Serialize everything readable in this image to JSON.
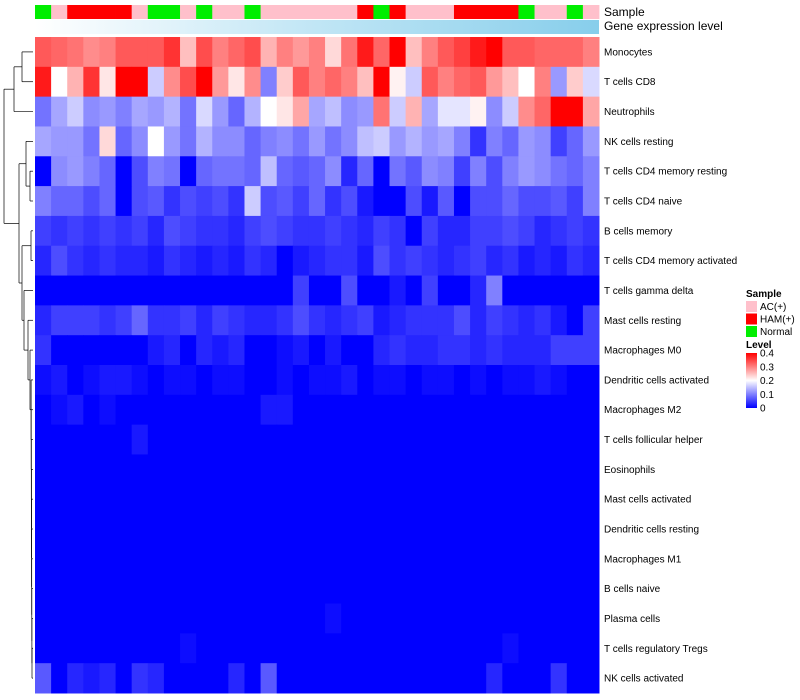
{
  "chart_data": {
    "type": "heatmap",
    "title": "",
    "annotations": [
      {
        "name": "Sample"
      },
      {
        "name": "Gene expression level"
      }
    ],
    "sample_groups": [
      "N",
      "A",
      "H",
      "H",
      "H",
      "H",
      "A",
      "N",
      "N",
      "A",
      "N",
      "A",
      "A",
      "N",
      "A",
      "A",
      "A",
      "A",
      "A",
      "A",
      "H",
      "N",
      "H",
      "A",
      "A",
      "A",
      "H",
      "H",
      "H",
      "H",
      "N",
      "A",
      "A",
      "N",
      "A"
    ],
    "rows": [
      "Monocytes",
      "T cells CD8",
      "Neutrophils",
      "NK cells resting",
      "T cells CD4 memory resting",
      "T cells CD4 naive",
      "B cells memory",
      "T cells CD4 memory activated",
      "T cells gamma delta",
      "Mast cells resting",
      "Macrophages M0",
      "Dendritic cells activated",
      "Macrophages M2",
      "T cells follicular helper",
      "Eosinophils",
      "Mast cells activated",
      "Dendritic cells resting",
      "Macrophages M1",
      "B cells naive",
      "Plasma cells",
      "T cells regulatory  Tregs",
      "NK cells activated"
    ],
    "values": [
      [
        0.33,
        0.32,
        0.31,
        0.29,
        0.3,
        0.33,
        0.33,
        0.33,
        0.36,
        0.25,
        0.34,
        0.3,
        0.32,
        0.34,
        0.26,
        0.3,
        0.28,
        0.3,
        0.23,
        0.31,
        0.38,
        0.32,
        0.42,
        0.25,
        0.3,
        0.33,
        0.35,
        0.38,
        0.4,
        0.33,
        0.33,
        0.32,
        0.32,
        0.32,
        0.3
      ],
      [
        0.38,
        0.2,
        0.26,
        0.36,
        0.22,
        0.4,
        0.4,
        0.16,
        0.29,
        0.34,
        0.4,
        0.28,
        0.22,
        0.29,
        0.1,
        0.24,
        0.33,
        0.3,
        0.32,
        0.3,
        0.25,
        0.42,
        0.21,
        0.16,
        0.33,
        0.3,
        0.32,
        0.33,
        0.28,
        0.25,
        0.2,
        0.3,
        0.12,
        0.24,
        0.17
      ],
      [
        0.09,
        0.13,
        0.16,
        0.11,
        0.12,
        0.1,
        0.13,
        0.12,
        0.14,
        0.09,
        0.17,
        0.12,
        0.08,
        0.14,
        0.2,
        0.22,
        0.27,
        0.13,
        0.15,
        0.11,
        0.12,
        0.31,
        0.16,
        0.26,
        0.13,
        0.18,
        0.18,
        0.21,
        0.11,
        0.16,
        0.29,
        0.32,
        0.4,
        0.44,
        0.27
      ],
      [
        0.13,
        0.12,
        0.12,
        0.09,
        0.23,
        0.08,
        0.11,
        0.2,
        0.12,
        0.09,
        0.14,
        0.11,
        0.11,
        0.08,
        0.1,
        0.11,
        0.09,
        0.12,
        0.09,
        0.11,
        0.15,
        0.16,
        0.12,
        0.14,
        0.12,
        0.13,
        0.1,
        0.04,
        0.1,
        0.08,
        0.12,
        0.11,
        0.05,
        0.08,
        0.12
      ],
      [
        0.0,
        0.11,
        0.12,
        0.1,
        0.08,
        0.0,
        0.06,
        0.1,
        0.09,
        0.0,
        0.08,
        0.09,
        0.09,
        0.08,
        0.15,
        0.08,
        0.07,
        0.08,
        0.11,
        0.03,
        0.08,
        0.0,
        0.09,
        0.07,
        0.11,
        0.1,
        0.05,
        0.1,
        0.06,
        0.1,
        0.12,
        0.11,
        0.09,
        0.08,
        0.1
      ],
      [
        0.1,
        0.08,
        0.08,
        0.06,
        0.08,
        0.0,
        0.06,
        0.07,
        0.04,
        0.06,
        0.05,
        0.06,
        0.04,
        0.16,
        0.06,
        0.07,
        0.05,
        0.08,
        0.04,
        0.06,
        0.02,
        0.0,
        0.0,
        0.06,
        0.02,
        0.07,
        0.0,
        0.06,
        0.06,
        0.08,
        0.06,
        0.06,
        0.07,
        0.05,
        0.1
      ],
      [
        0.05,
        0.04,
        0.05,
        0.04,
        0.05,
        0.04,
        0.05,
        0.03,
        0.06,
        0.05,
        0.04,
        0.04,
        0.03,
        0.05,
        0.06,
        0.05,
        0.04,
        0.04,
        0.05,
        0.04,
        0.03,
        0.05,
        0.04,
        0.0,
        0.05,
        0.03,
        0.03,
        0.05,
        0.05,
        0.06,
        0.05,
        0.03,
        0.04,
        0.05,
        0.04
      ],
      [
        0.03,
        0.06,
        0.04,
        0.03,
        0.04,
        0.03,
        0.03,
        0.02,
        0.04,
        0.03,
        0.02,
        0.03,
        0.02,
        0.04,
        0.03,
        0.0,
        0.02,
        0.03,
        0.04,
        0.04,
        0.02,
        0.06,
        0.04,
        0.05,
        0.04,
        0.03,
        0.04,
        0.05,
        0.03,
        0.04,
        0.02,
        0.03,
        0.02,
        0.04,
        0.03
      ],
      [
        0.0,
        0.0,
        0.0,
        0.0,
        0.0,
        0.0,
        0.0,
        0.0,
        0.0,
        0.0,
        0.0,
        0.0,
        0.0,
        0.0,
        0.0,
        0.0,
        0.05,
        0.0,
        0.0,
        0.06,
        0.0,
        0.0,
        0.02,
        0.0,
        0.05,
        0.0,
        0.0,
        0.03,
        0.1,
        0.0,
        0.0,
        0.0,
        0.0,
        0.0,
        0.0
      ],
      [
        0.03,
        0.05,
        0.05,
        0.05,
        0.04,
        0.05,
        0.08,
        0.04,
        0.04,
        0.05,
        0.03,
        0.05,
        0.04,
        0.03,
        0.03,
        0.04,
        0.06,
        0.04,
        0.03,
        0.04,
        0.05,
        0.02,
        0.03,
        0.04,
        0.04,
        0.04,
        0.06,
        0.03,
        0.05,
        0.04,
        0.03,
        0.04,
        0.02,
        0.0,
        0.05
      ],
      [
        0.04,
        0.0,
        0.0,
        0.0,
        0.0,
        0.0,
        0.0,
        0.02,
        0.03,
        0.0,
        0.03,
        0.02,
        0.03,
        0.0,
        0.0,
        0.01,
        0.02,
        0.0,
        0.02,
        0.0,
        0.0,
        0.03,
        0.04,
        0.03,
        0.03,
        0.04,
        0.04,
        0.03,
        0.04,
        0.03,
        0.03,
        0.03,
        0.05,
        0.05,
        0.05
      ],
      [
        0.01,
        0.02,
        0.0,
        0.01,
        0.02,
        0.02,
        0.01,
        0.0,
        0.01,
        0.01,
        0.0,
        0.01,
        0.01,
        0.0,
        0.0,
        0.01,
        0.0,
        0.01,
        0.01,
        0.02,
        0.0,
        0.01,
        0.01,
        0.0,
        0.01,
        0.01,
        0.0,
        0.01,
        0.0,
        0.01,
        0.01,
        0.02,
        0.01,
        0.0,
        0.0
      ],
      [
        0.0,
        0.01,
        0.02,
        0.0,
        0.01,
        0.0,
        0.0,
        0.0,
        0.0,
        0.0,
        0.0,
        0.0,
        0.0,
        0.0,
        0.02,
        0.02,
        0.0,
        0.0,
        0.0,
        0.0,
        0.0,
        0.0,
        0.0,
        0.0,
        0.0,
        0.0,
        0.0,
        0.0,
        0.0,
        0.0,
        0.0,
        0.0,
        0.0,
        0.0,
        0.0
      ],
      [
        0.0,
        0.0,
        0.0,
        0.0,
        0.0,
        0.0,
        0.02,
        0.0,
        0.0,
        0.0,
        0.0,
        0.0,
        0.0,
        0.0,
        0.0,
        0.0,
        0.0,
        0.0,
        0.0,
        0.0,
        0.0,
        0.0,
        0.0,
        0.0,
        0.0,
        0.0,
        0.0,
        0.0,
        0.0,
        0.0,
        0.0,
        0.0,
        0.0,
        0.0,
        0.0
      ],
      [
        0.0,
        0.0,
        0.0,
        0.0,
        0.0,
        0.0,
        0.0,
        0.0,
        0.0,
        0.0,
        0.0,
        0.0,
        0.0,
        0.0,
        0.0,
        0.0,
        0.0,
        0.0,
        0.0,
        0.0,
        0.0,
        0.0,
        0.0,
        0.0,
        0.0,
        0.0,
        0.0,
        0.0,
        0.0,
        0.0,
        0.0,
        0.0,
        0.0,
        0.0,
        0.0
      ],
      [
        0.0,
        0.0,
        0.0,
        0.0,
        0.0,
        0.0,
        0.0,
        0.0,
        0.0,
        0.0,
        0.0,
        0.0,
        0.0,
        0.0,
        0.0,
        0.0,
        0.0,
        0.0,
        0.0,
        0.0,
        0.0,
        0.0,
        0.0,
        0.0,
        0.0,
        0.0,
        0.0,
        0.0,
        0.0,
        0.0,
        0.0,
        0.0,
        0.0,
        0.0,
        0.0
      ],
      [
        0.0,
        0.0,
        0.0,
        0.0,
        0.0,
        0.0,
        0.0,
        0.0,
        0.0,
        0.0,
        0.0,
        0.0,
        0.0,
        0.0,
        0.0,
        0.0,
        0.0,
        0.0,
        0.0,
        0.0,
        0.0,
        0.0,
        0.0,
        0.0,
        0.0,
        0.0,
        0.0,
        0.0,
        0.0,
        0.0,
        0.0,
        0.0,
        0.0,
        0.0,
        0.0
      ],
      [
        0.0,
        0.0,
        0.0,
        0.0,
        0.0,
        0.0,
        0.0,
        0.0,
        0.0,
        0.0,
        0.0,
        0.0,
        0.0,
        0.0,
        0.0,
        0.0,
        0.0,
        0.0,
        0.0,
        0.0,
        0.0,
        0.0,
        0.0,
        0.0,
        0.0,
        0.0,
        0.0,
        0.0,
        0.0,
        0.0,
        0.0,
        0.0,
        0.0,
        0.0,
        0.0
      ],
      [
        0.0,
        0.0,
        0.0,
        0.0,
        0.0,
        0.0,
        0.0,
        0.0,
        0.0,
        0.0,
        0.0,
        0.0,
        0.0,
        0.0,
        0.0,
        0.0,
        0.0,
        0.0,
        0.0,
        0.0,
        0.0,
        0.0,
        0.0,
        0.0,
        0.0,
        0.0,
        0.0,
        0.0,
        0.0,
        0.0,
        0.0,
        0.0,
        0.0,
        0.0,
        0.0
      ],
      [
        0.0,
        0.0,
        0.0,
        0.0,
        0.0,
        0.0,
        0.0,
        0.0,
        0.0,
        0.0,
        0.0,
        0.0,
        0.0,
        0.0,
        0.0,
        0.0,
        0.0,
        0.0,
        0.01,
        0.0,
        0.0,
        0.0,
        0.0,
        0.0,
        0.0,
        0.0,
        0.0,
        0.0,
        0.0,
        0.0,
        0.0,
        0.0,
        0.0,
        0.0,
        0.0
      ],
      [
        0.0,
        0.0,
        0.0,
        0.0,
        0.0,
        0.0,
        0.0,
        0.0,
        0.0,
        0.01,
        0.0,
        0.0,
        0.0,
        0.0,
        0.0,
        0.0,
        0.0,
        0.0,
        0.0,
        0.0,
        0.0,
        0.0,
        0.0,
        0.0,
        0.0,
        0.0,
        0.0,
        0.0,
        0.0,
        0.01,
        0.0,
        0.0,
        0.0,
        0.0,
        0.0
      ],
      [
        0.07,
        0.0,
        0.03,
        0.02,
        0.03,
        0.0,
        0.04,
        0.03,
        0.0,
        0.0,
        0.0,
        0.0,
        0.03,
        0.0,
        0.07,
        0.0,
        0.0,
        0.0,
        0.0,
        0.0,
        0.0,
        0.0,
        0.0,
        0.0,
        0.0,
        0.0,
        0.0,
        0.0,
        0.03,
        0.0,
        0.0,
        0.0,
        0.04,
        0.0,
        0.0
      ]
    ],
    "color_scale": {
      "min": 0,
      "max": 0.4,
      "colors": [
        "#0000ff",
        "#ffffff",
        "#ff0000"
      ]
    },
    "legend": {
      "sample": {
        "title": "Sample",
        "entries": [
          {
            "label": "AC(+)",
            "color": "#ffc0cb"
          },
          {
            "label": "HAM(+)",
            "color": "#ff0000"
          },
          {
            "label": "Normal",
            "color": "#00ee00"
          }
        ]
      },
      "level": {
        "title": "Level",
        "ticks": [
          "0.4",
          "0.3",
          "0.2",
          "0.1",
          "0"
        ],
        "tick_values": [
          0.4,
          0.3,
          0.2,
          0.1,
          0
        ]
      }
    },
    "gene_expression_color": "#87ceeb",
    "dendrogram_color": "#000000"
  }
}
